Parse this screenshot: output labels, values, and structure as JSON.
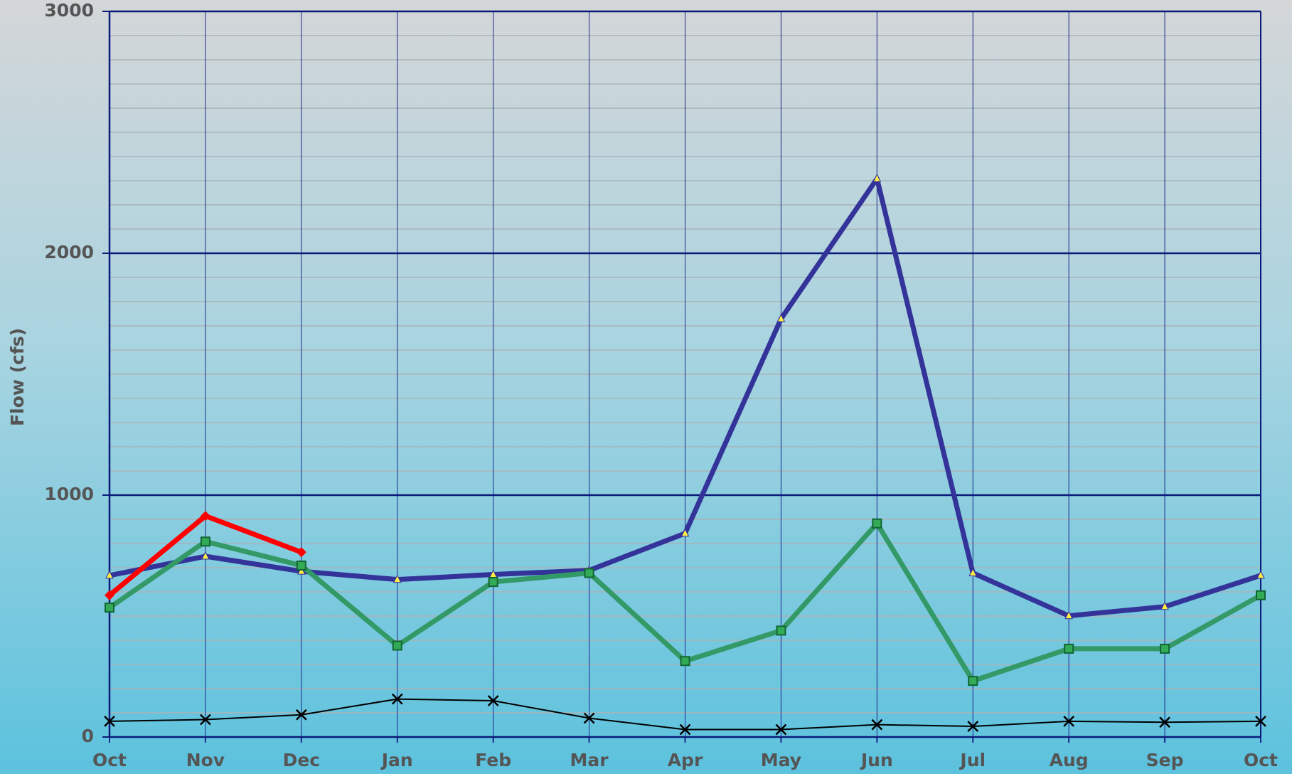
{
  "chart_data": {
    "type": "line",
    "y_label": "Flow (cfs)",
    "categories": [
      "Oct",
      "Nov",
      "Dec",
      "Jan",
      "Feb",
      "Mar",
      "Apr",
      "May",
      "Jun",
      "Jul",
      "Aug",
      "Sep",
      "Oct"
    ],
    "series": [
      {
        "color": "#333399",
        "marker": "triangle",
        "width": 7,
        "values": [
          668,
          747,
          685,
          651,
          672,
          689,
          842,
          1729,
          2308,
          678,
          501,
          539,
          668
        ]
      },
      {
        "color": "#339966",
        "marker": "square",
        "width": 7,
        "values": [
          535,
          808,
          709,
          378,
          641,
          678,
          314,
          440,
          883,
          232,
          365,
          365,
          586
        ]
      },
      {
        "color": "#ff0000",
        "marker": "diamond",
        "width": 7,
        "values": [
          586,
          914,
          764,
          null,
          null,
          null,
          null,
          null,
          null,
          null,
          null,
          null,
          null
        ]
      },
      {
        "color": "#000000",
        "marker": "x",
        "width": 2,
        "values": [
          65,
          72,
          92,
          157,
          150,
          78,
          31,
          31,
          51,
          44,
          65,
          61,
          65
        ]
      }
    ],
    "ylim": [
      0,
      3000
    ],
    "yticks": [
      0,
      1000,
      2000,
      3000
    ],
    "grid": true,
    "minor_grid": true
  }
}
